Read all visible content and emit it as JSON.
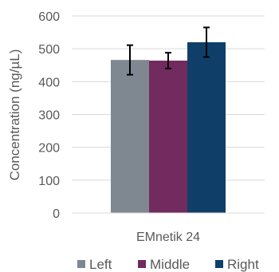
{
  "chart_data": {
    "type": "bar",
    "title": "",
    "xlabel": "",
    "ylabel": "Concentration (ng/µL)",
    "ylim": [
      0,
      600
    ],
    "yticks": [
      0,
      100,
      200,
      300,
      400,
      500,
      600
    ],
    "grid": true,
    "legend_position": "bottom",
    "categories": [
      "EMnetik 24"
    ],
    "series": [
      {
        "name": "Left",
        "color": "#7f8790",
        "values": [
          466
        ],
        "error": [
          45
        ]
      },
      {
        "name": "Middle",
        "color": "#722b5e",
        "values": [
          464
        ],
        "error": [
          24
        ]
      },
      {
        "name": "Right",
        "color": "#0f3f68",
        "values": [
          520
        ],
        "error": [
          45
        ]
      }
    ]
  }
}
